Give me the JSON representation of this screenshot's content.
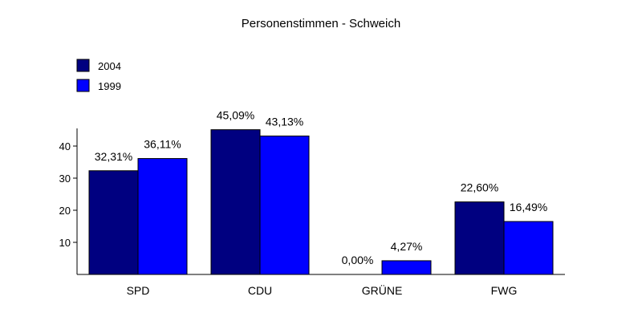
{
  "chart_data": {
    "type": "bar",
    "title": "Personenstimmen - Schweich",
    "categories": [
      "SPD",
      "CDU",
      "GRÜNE",
      "FWG"
    ],
    "series": [
      {
        "name": "2004",
        "color": "#000080",
        "values": [
          32.31,
          45.09,
          0.0,
          22.6
        ],
        "labels": [
          "32,31%",
          "45,09%",
          "0,00%",
          "22,60%"
        ]
      },
      {
        "name": "1999",
        "color": "#0000ff",
        "values": [
          36.11,
          43.13,
          4.27,
          16.49
        ],
        "labels": [
          "36,11%",
          "43,13%",
          "4,27%",
          "16,49%"
        ]
      }
    ],
    "yticks": [
      "10",
      "20",
      "30",
      "40"
    ],
    "ylim": [
      0,
      45.5
    ],
    "xlabel": "",
    "ylabel": "",
    "grid": false,
    "legend_position": "top-left"
  }
}
